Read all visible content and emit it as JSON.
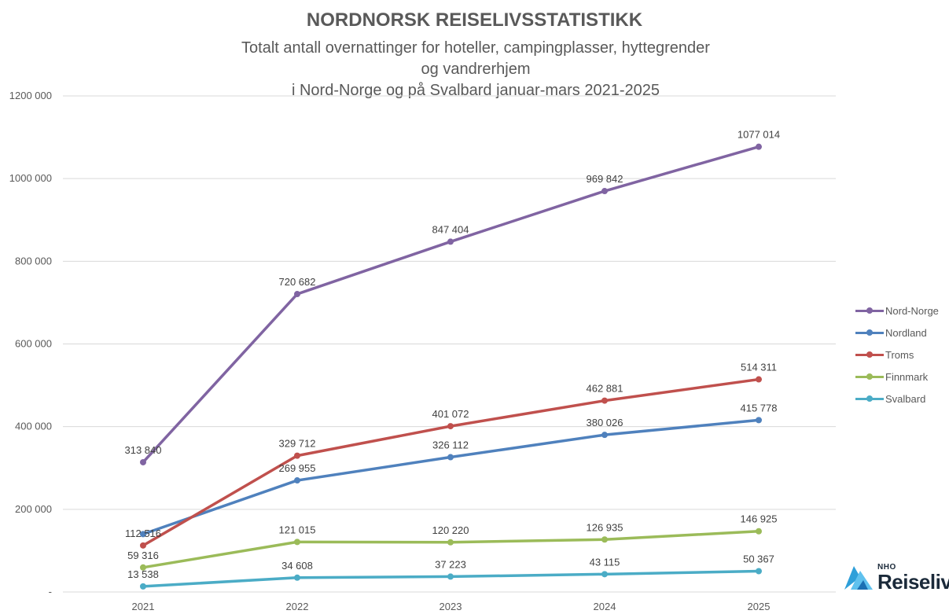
{
  "chart_data": {
    "type": "line",
    "title": "NORDNORSK REISELIVSSTATISTIKK",
    "subtitle_lines": [
      "Totalt antall overnattinger for hoteller, campingplasser, hyttegrender og vandrerhjem",
      "i Nord-Norge og på Svalbard januar-mars 2021-2025"
    ],
    "xlabel": "",
    "ylabel": "",
    "categories": [
      "2021",
      "2022",
      "2023",
      "2024",
      "2025"
    ],
    "ylim": [
      0,
      1200000
    ],
    "y_ticks": [
      {
        "value": 0,
        "label": "-"
      },
      {
        "value": 200000,
        "label": "200 000"
      },
      {
        "value": 400000,
        "label": "400 000"
      },
      {
        "value": 600000,
        "label": "600 000"
      },
      {
        "value": 800000,
        "label": "800 000"
      },
      {
        "value": 1000000,
        "label": "1000 000"
      },
      {
        "value": 1200000,
        "label": "1200 000"
      }
    ],
    "grid": true,
    "legend_position": "right",
    "series": [
      {
        "name": "Nord-Norge",
        "color": "#8064a2",
        "values": [
          313840,
          720682,
          847404,
          969842,
          1077014
        ],
        "labels": [
          "313 840",
          "720 682",
          "847 404",
          "969 842",
          "1077 014"
        ]
      },
      {
        "name": "Nordland",
        "color": "#4f81bd",
        "values": [
          140000,
          269955,
          326112,
          380026,
          415778
        ],
        "labels": [
          "",
          "269 955",
          "326 112",
          "380 026",
          "415 778"
        ]
      },
      {
        "name": "Troms",
        "color": "#c0504d",
        "values": [
          112516,
          329712,
          401072,
          462881,
          514311
        ],
        "labels": [
          "112 516",
          "329 712",
          "401 072",
          "462 881",
          "514 311"
        ]
      },
      {
        "name": "Finnmark",
        "color": "#9bbb59",
        "values": [
          59316,
          121015,
          120220,
          126935,
          146925
        ],
        "labels": [
          "59 316",
          "121 015",
          "120 220",
          "126 935",
          "146 925"
        ]
      },
      {
        "name": "Svalbard",
        "color": "#4bacc6",
        "values": [
          13538,
          34608,
          37223,
          43115,
          50367
        ],
        "labels": [
          "13 538",
          "34 608",
          "37 223",
          "43 115",
          "50 367"
        ]
      }
    ]
  },
  "logo": {
    "small": "NHO",
    "big": "Reiseliv",
    "icon": "nho-reiseliv-logo-icon",
    "color": "#2e9fd9"
  }
}
